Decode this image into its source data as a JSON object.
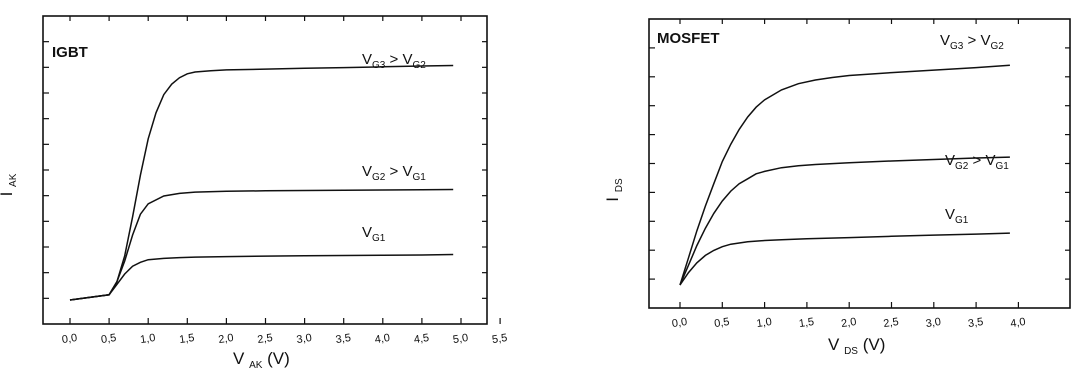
{
  "chart_data": [
    {
      "type": "line",
      "panel_title": "IGBT",
      "xlabel": "V",
      "xlabel_sub": "AK",
      "xlabel_unit": "(V)",
      "ylabel": "I",
      "ylabel_sub": "AK",
      "xlim": [
        -0.3,
        5.5
      ],
      "ylim": [
        0,
        1
      ],
      "xticks": [
        "0,0",
        "0,5",
        "1,0",
        "1,5",
        "2,0",
        "2,5",
        "3,0",
        "3,5",
        "4,0",
        "4,5",
        "5,0",
        "5,5"
      ],
      "grid": false,
      "series": [
        {
          "label_main": "V",
          "label_sub": "G3",
          "label_op": " > ",
          "label_main2": "V",
          "label_sub2": "G2",
          "x": [
            0.0,
            0.5,
            0.6,
            0.7,
            0.8,
            0.9,
            1.0,
            1.1,
            1.2,
            1.3,
            1.4,
            1.5,
            1.6,
            1.8,
            2.0,
            2.5,
            3.0,
            3.5,
            4.0,
            4.5,
            4.9
          ],
          "y": [
            0.0,
            0.02,
            0.07,
            0.17,
            0.32,
            0.48,
            0.62,
            0.72,
            0.79,
            0.83,
            0.855,
            0.87,
            0.877,
            0.882,
            0.885,
            0.888,
            0.891,
            0.894,
            0.897,
            0.9,
            0.902
          ]
        },
        {
          "label_main": "V",
          "label_sub": "G2",
          "label_op": " > ",
          "label_main2": "V",
          "label_sub2": "G1",
          "x": [
            0.0,
            0.5,
            0.6,
            0.7,
            0.8,
            0.9,
            1.0,
            1.2,
            1.4,
            1.6,
            2.0,
            2.5,
            3.0,
            3.5,
            4.0,
            4.5,
            4.9
          ],
          "y": [
            0.0,
            0.02,
            0.07,
            0.15,
            0.25,
            0.33,
            0.37,
            0.4,
            0.41,
            0.415,
            0.418,
            0.42,
            0.421,
            0.422,
            0.423,
            0.424,
            0.425
          ]
        },
        {
          "label_main": "V",
          "label_sub": "G1",
          "label_op": "",
          "label_main2": "",
          "label_sub2": "",
          "x": [
            0.0,
            0.5,
            0.6,
            0.7,
            0.8,
            0.9,
            1.0,
            1.2,
            1.4,
            1.6,
            2.0,
            2.5,
            3.0,
            3.5,
            4.0,
            4.5,
            4.9
          ],
          "y": [
            0.0,
            0.02,
            0.06,
            0.1,
            0.13,
            0.145,
            0.155,
            0.16,
            0.163,
            0.165,
            0.167,
            0.169,
            0.17,
            0.171,
            0.172,
            0.173,
            0.175
          ]
        }
      ]
    },
    {
      "type": "line",
      "panel_title": "MOSFET",
      "xlabel": "V",
      "xlabel_sub": "DS",
      "xlabel_unit": "(V)",
      "ylabel": "I",
      "ylabel_sub": "DS",
      "xlim": [
        -0.3,
        4.3
      ],
      "ylim": [
        0,
        1
      ],
      "xticks": [
        "0,0",
        "0,5",
        "1,0",
        "1,5",
        "2,0",
        "2,5",
        "3,0",
        "3,5",
        "4,0"
      ],
      "grid": false,
      "series": [
        {
          "label_main": "V",
          "label_sub": "G3",
          "label_op": " > ",
          "label_main2": "V",
          "label_sub2": "G2",
          "x": [
            0.0,
            0.1,
            0.2,
            0.3,
            0.4,
            0.5,
            0.6,
            0.7,
            0.8,
            0.9,
            1.0,
            1.2,
            1.4,
            1.6,
            1.8,
            2.0,
            2.5,
            3.0,
            3.5,
            3.9
          ],
          "y": [
            0.0,
            0.11,
            0.22,
            0.32,
            0.41,
            0.5,
            0.57,
            0.63,
            0.68,
            0.72,
            0.75,
            0.79,
            0.815,
            0.83,
            0.84,
            0.848,
            0.86,
            0.87,
            0.88,
            0.89
          ]
        },
        {
          "label_main": "V",
          "label_sub": "G2",
          "label_op": " > ",
          "label_main2": "V",
          "label_sub2": "G1",
          "x": [
            0.0,
            0.1,
            0.2,
            0.3,
            0.4,
            0.5,
            0.6,
            0.7,
            0.8,
            0.9,
            1.0,
            1.2,
            1.4,
            1.6,
            2.0,
            2.5,
            3.0,
            3.5,
            3.9
          ],
          "y": [
            0.0,
            0.08,
            0.16,
            0.23,
            0.29,
            0.34,
            0.38,
            0.41,
            0.43,
            0.45,
            0.46,
            0.475,
            0.483,
            0.488,
            0.495,
            0.502,
            0.508,
            0.514,
            0.518
          ]
        },
        {
          "label_main": "V",
          "label_sub": "G1",
          "label_op": "",
          "label_main2": "",
          "label_sub2": "",
          "x": [
            0.0,
            0.1,
            0.2,
            0.3,
            0.4,
            0.5,
            0.6,
            0.8,
            1.0,
            1.2,
            1.5,
            2.0,
            2.5,
            3.0,
            3.5,
            3.9
          ],
          "y": [
            0.0,
            0.05,
            0.09,
            0.12,
            0.14,
            0.155,
            0.165,
            0.175,
            0.18,
            0.183,
            0.187,
            0.192,
            0.197,
            0.202,
            0.206,
            0.21
          ]
        }
      ]
    }
  ]
}
